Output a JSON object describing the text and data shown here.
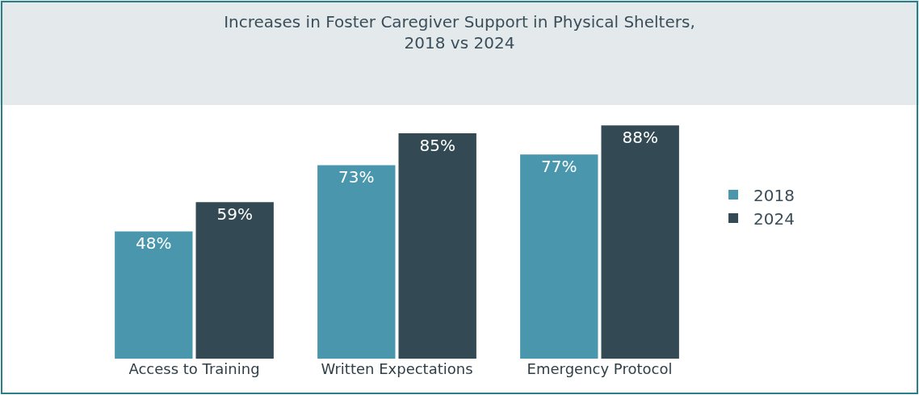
{
  "chart_data": {
    "type": "bar",
    "title": "Increases in Foster Caregiver Support in Physical Shelters,\n2018 vs 2024",
    "categories": [
      "Access to Training",
      "Written Expectations",
      "Emergency Protocol"
    ],
    "series": [
      {
        "name": "2018",
        "color": "#4a97ad",
        "values": [
          48,
          73,
          77
        ],
        "value_labels": [
          "48%",
          "73%",
          "77%"
        ]
      },
      {
        "name": "2024",
        "color": "#334a55",
        "values": [
          59,
          85,
          88
        ],
        "value_labels": [
          "59%",
          "85%",
          "88%"
        ]
      }
    ],
    "legend": "right"
  }
}
